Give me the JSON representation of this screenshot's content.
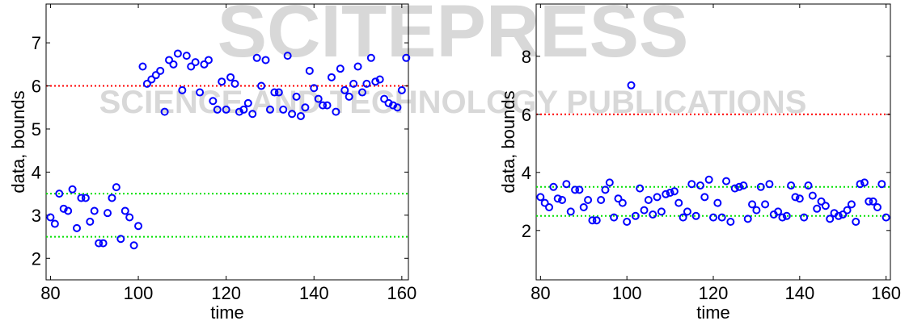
{
  "watermark": {
    "title": "SCITEPRESS",
    "subtitle": "SCIENCE AND TECHNOLOGY PUBLICATIONS"
  },
  "chart_data": [
    {
      "type": "scatter",
      "xlabel": "time",
      "ylabel": "data, bounds",
      "xlim": [
        79,
        161.5
      ],
      "ylim": [
        1.5,
        7.9
      ],
      "xticks": [
        80,
        100,
        120,
        140,
        160
      ],
      "yticks": [
        2,
        3,
        4,
        5,
        6,
        7
      ],
      "x": [
        80,
        81,
        82,
        83,
        84,
        85,
        86,
        87,
        88,
        89,
        90,
        91,
        92,
        93,
        94,
        95,
        96,
        97,
        98,
        99,
        100,
        101,
        102,
        103,
        104,
        105,
        106,
        107,
        108,
        109,
        110,
        111,
        112,
        113,
        114,
        115,
        116,
        117,
        118,
        119,
        120,
        121,
        122,
        123,
        124,
        125,
        126,
        127,
        128,
        129,
        130,
        131,
        132,
        133,
        134,
        135,
        136,
        137,
        138,
        139,
        140,
        141,
        142,
        143,
        144,
        145,
        146,
        147,
        148,
        149,
        150,
        151,
        152,
        153,
        154,
        155,
        156,
        157,
        158,
        159,
        160,
        161
      ],
      "series": [
        {
          "color": "#0000ff",
          "values": [
            2.95,
            2.8,
            3.5,
            3.15,
            3.1,
            3.6,
            2.7,
            3.4,
            3.4,
            2.85,
            3.1,
            2.35,
            2.35,
            3.05,
            3.4,
            3.65,
            2.45,
            3.1,
            2.95,
            2.3,
            2.75,
            6.45,
            6.05,
            6.15,
            6.25,
            6.35,
            5.4,
            6.6,
            6.5,
            6.75,
            5.9,
            6.7,
            6.45,
            6.55,
            5.85,
            6.5,
            6.6,
            5.65,
            5.45,
            6.1,
            5.45,
            6.2,
            6.05,
            5.4,
            5.45,
            5.6,
            5.35,
            6.65,
            6.0,
            6.6,
            5.45,
            5.85,
            5.85,
            5.45,
            6.7,
            5.35,
            5.75,
            5.3,
            5.5,
            6.35,
            5.95,
            5.7,
            5.55,
            5.55,
            6.2,
            5.4,
            6.4,
            5.9,
            5.75,
            6.05,
            6.45,
            5.85,
            6.05,
            6.65,
            6.1,
            6.15,
            5.7,
            5.6,
            5.55,
            5.5,
            5.9,
            6.65
          ]
        }
      ],
      "hlines": [
        {
          "value": 6,
          "color": "#ff0000"
        },
        {
          "value": 3.5,
          "color": "#00e000"
        },
        {
          "value": 2.5,
          "color": "#00e000"
        }
      ]
    },
    {
      "type": "scatter",
      "xlabel": "time",
      "ylabel": "data, bounds",
      "xlim": [
        79,
        161
      ],
      "ylim": [
        0.3,
        9.8
      ],
      "xticks": [
        80,
        100,
        120,
        140,
        160
      ],
      "yticks": [
        2,
        4,
        6,
        8
      ],
      "x": [
        80,
        81,
        82,
        83,
        84,
        85,
        86,
        87,
        88,
        89,
        90,
        91,
        92,
        93,
        94,
        95,
        96,
        97,
        98,
        99,
        100,
        101,
        102,
        103,
        104,
        105,
        106,
        107,
        108,
        109,
        110,
        111,
        112,
        113,
        114,
        115,
        116,
        117,
        118,
        119,
        120,
        121,
        122,
        123,
        124,
        125,
        126,
        127,
        128,
        129,
        130,
        131,
        132,
        133,
        134,
        135,
        136,
        137,
        138,
        139,
        140,
        141,
        142,
        143,
        144,
        145,
        146,
        147,
        148,
        149,
        150,
        151,
        152,
        153,
        154,
        155,
        156,
        157,
        158,
        159,
        160
      ],
      "series": [
        {
          "color": "#0000ff",
          "values": [
            3.15,
            2.95,
            2.8,
            3.5,
            3.1,
            3.05,
            3.6,
            2.65,
            3.4,
            3.4,
            2.8,
            3.05,
            2.35,
            2.35,
            3.05,
            3.4,
            3.65,
            2.45,
            3.1,
            2.95,
            2.3,
            7.0,
            2.5,
            3.45,
            2.7,
            3.05,
            2.55,
            3.15,
            2.65,
            3.25,
            3.3,
            3.35,
            2.95,
            2.45,
            2.65,
            3.6,
            2.5,
            3.55,
            3.15,
            3.75,
            2.45,
            2.95,
            2.45,
            3.7,
            2.3,
            3.45,
            3.5,
            3.55,
            2.4,
            2.9,
            2.7,
            3.5,
            2.9,
            3.6,
            2.55,
            2.65,
            2.45,
            2.5,
            3.55,
            3.15,
            3.1,
            2.45,
            3.55,
            3.2,
            2.75,
            3.0,
            2.85,
            2.4,
            2.6,
            2.5,
            2.55,
            2.7,
            2.9,
            2.3,
            3.6,
            3.65,
            3.0,
            3.0,
            2.8,
            3.6,
            2.45
          ]
        }
      ],
      "hlines": [
        {
          "value": 6,
          "color": "#ff0000"
        },
        {
          "value": 3.5,
          "color": "#00e000"
        },
        {
          "value": 2.5,
          "color": "#00e000"
        }
      ]
    }
  ]
}
